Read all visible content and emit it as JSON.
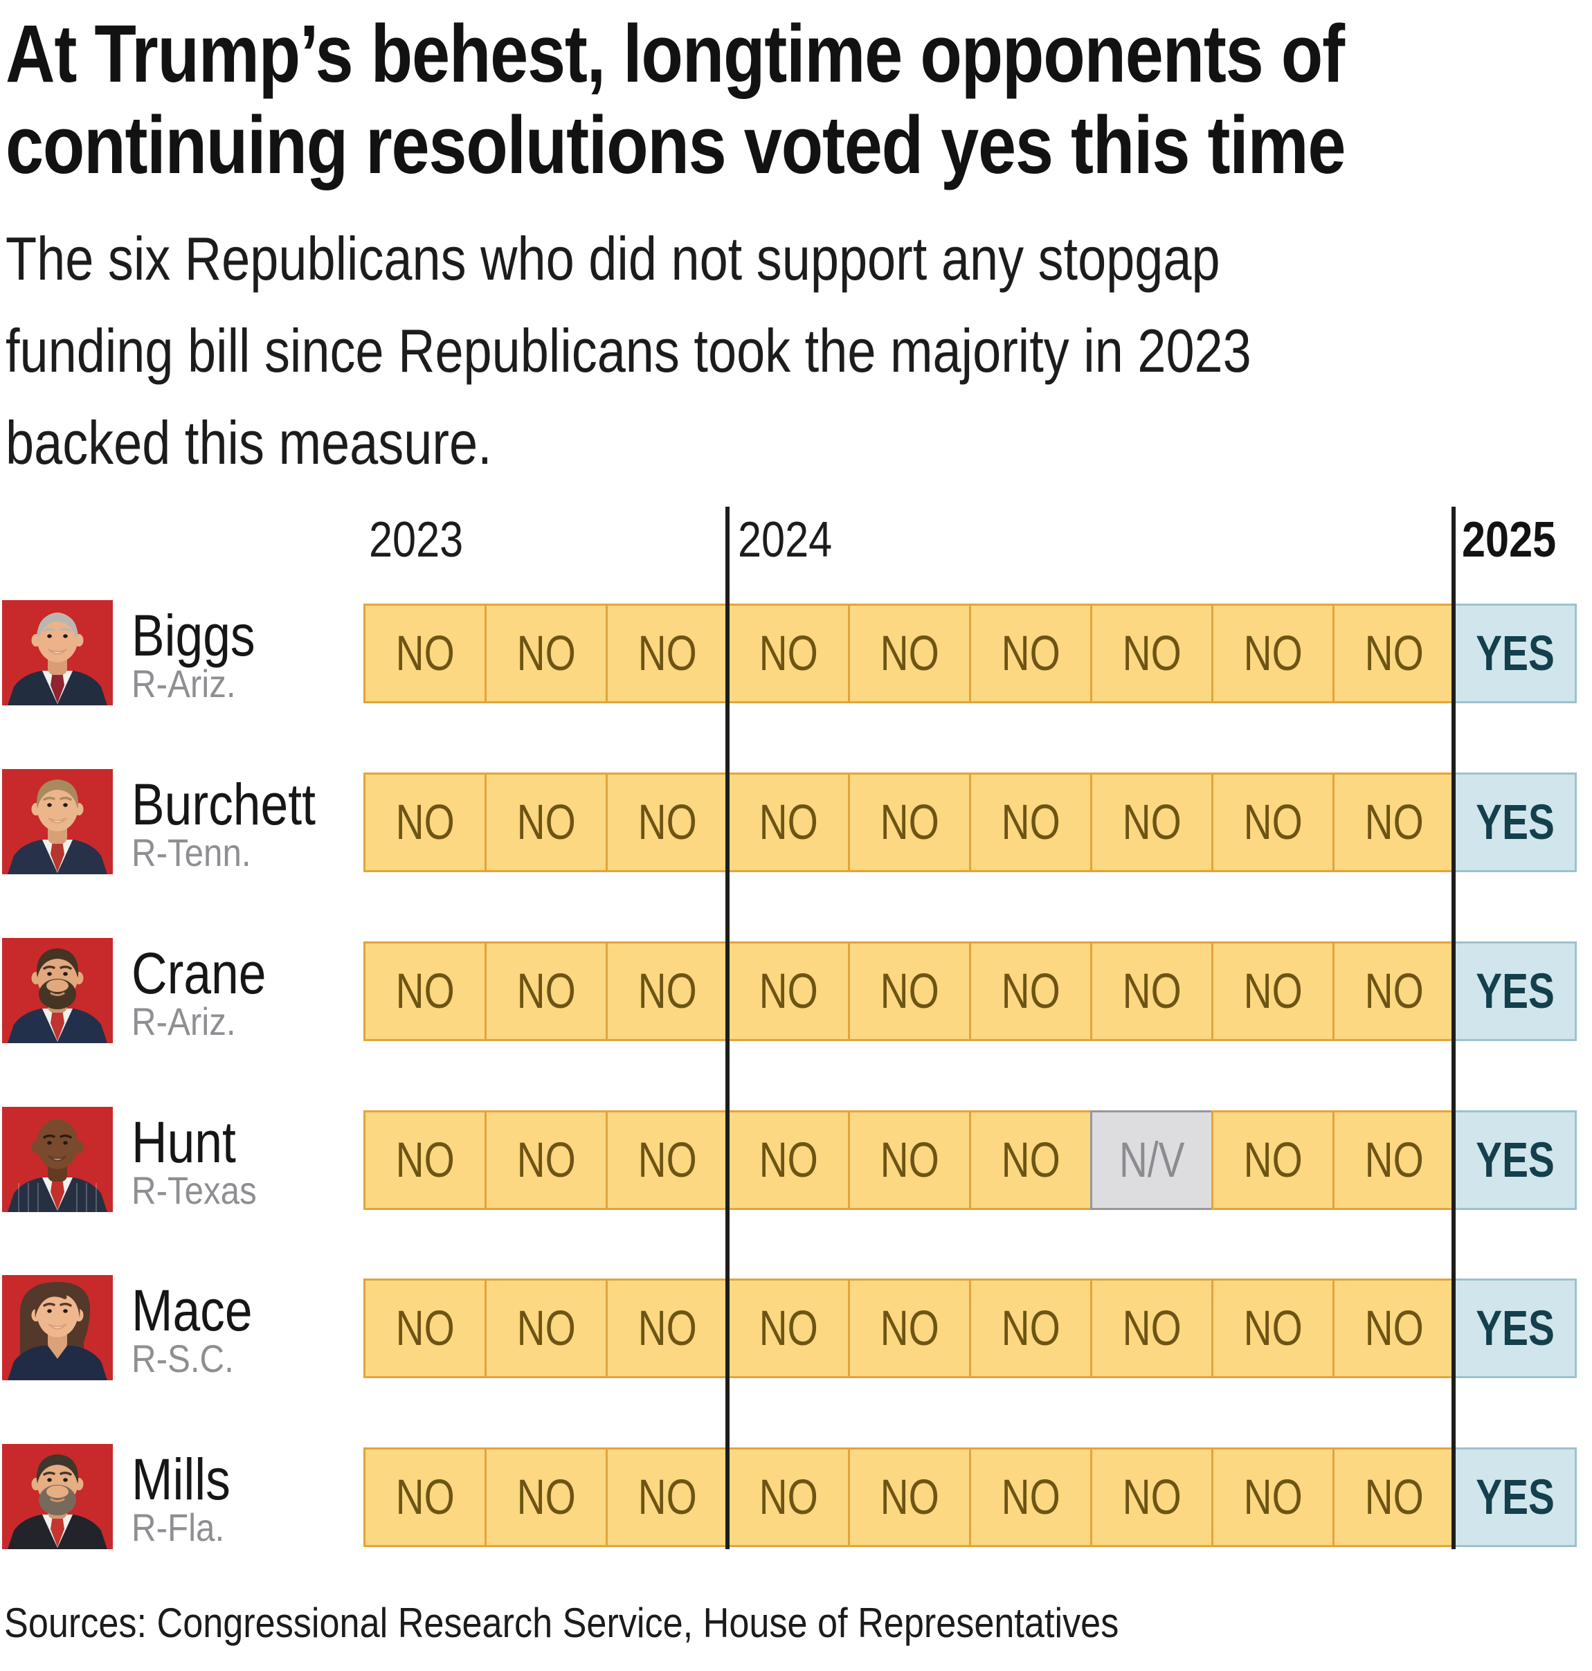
{
  "title_lines": [
    "At Trump’s behest, longtime opponents of",
    "continuing resolutions voted yes this time"
  ],
  "subtitle_lines": [
    "The six Republicans who did not support any stopgap",
    "funding bill since Republicans took the majority in 2023",
    "backed this measure."
  ],
  "years": [
    {
      "label": "2023",
      "bold": false
    },
    {
      "label": "2024",
      "bold": false
    },
    {
      "label": "2025",
      "bold": true
    }
  ],
  "source": "Sources: Congressional Research Service, House of Representatives",
  "colors": {
    "no_fill": "#fbd881",
    "no_border": "#e3a43a",
    "no_text": "#6e5414",
    "yes_fill": "#d0e6ec",
    "yes_border": "#9dc2cc",
    "yes_text": "#143f4c",
    "nv_fill": "#dddde0",
    "nv_border": "#96969c",
    "nv_text": "#8b8b91",
    "year_divider": "#1d1d1b",
    "photo_background": "#c8292a",
    "name_text": "#161616",
    "state_text": "#8e8e93"
  },
  "members": [
    {
      "name": "Biggs",
      "party_state": "R-Ariz.",
      "votes": [
        "NO",
        "NO",
        "NO",
        "NO",
        "NO",
        "NO",
        "NO",
        "NO",
        "NO",
        "YES"
      ],
      "avatar": {
        "bg": "#c8292a",
        "skin": "#ecb38a",
        "skin2": "#d99d74",
        "hair": "#b9b6b1",
        "hair_style": "combover",
        "beard": null,
        "suit": "#222d40",
        "shirt": true,
        "tie": "#8f2330",
        "pinstripe": false,
        "smile": true
      }
    },
    {
      "name": "Burchett",
      "party_state": "R-Tenn.",
      "votes": [
        "NO",
        "NO",
        "NO",
        "NO",
        "NO",
        "NO",
        "NO",
        "NO",
        "NO",
        "YES"
      ],
      "avatar": {
        "bg": "#c8292a",
        "skin": "#ecb68c",
        "skin2": "#d9a077",
        "hair": "#a88a5e",
        "hair_style": "side",
        "beard": null,
        "suit": "#27314a",
        "shirt": true,
        "tie": "#b5352f",
        "pinstripe": false,
        "smile": true
      }
    },
    {
      "name": "Crane",
      "party_state": "R-Ariz.",
      "votes": [
        "NO",
        "NO",
        "NO",
        "NO",
        "NO",
        "NO",
        "NO",
        "NO",
        "NO",
        "YES"
      ],
      "avatar": {
        "bg": "#c8292a",
        "skin": "#e2a87e",
        "skin2": "#cf9268",
        "hair": "#453323",
        "beard": "#463525",
        "hair_style": "side",
        "suit": "#22304c",
        "shirt": true,
        "tie": "#bd3430",
        "pinstripe": false,
        "smile": false
      }
    },
    {
      "name": "Hunt",
      "party_state": "R-Texas",
      "votes": [
        "NO",
        "NO",
        "NO",
        "NO",
        "NO",
        "NO",
        "N/V",
        "NO",
        "NO",
        "YES"
      ],
      "avatar": {
        "bg": "#c8292a",
        "skin": "#7a4a2e",
        "skin2": "#643a22",
        "hair": "#3a261a",
        "hair_style": "bald",
        "beard": null,
        "suit": "#273043",
        "shirt": true,
        "tie": "#c3302c",
        "pinstripe": true,
        "smile": true
      }
    },
    {
      "name": "Mace",
      "party_state": "R-S.C.",
      "votes": [
        "NO",
        "NO",
        "NO",
        "NO",
        "NO",
        "NO",
        "NO",
        "NO",
        "NO",
        "YES"
      ],
      "avatar": {
        "bg": "#c8292a",
        "skin": "#eeb78e",
        "skin2": "#dba178",
        "hair": "#54382a",
        "hair_style": "long",
        "beard": null,
        "suit": "#202b46",
        "shirt": false,
        "tie": null,
        "pinstripe": false,
        "smile": true
      }
    },
    {
      "name": "Mills",
      "party_state": "R-Fla.",
      "votes": [
        "NO",
        "NO",
        "NO",
        "NO",
        "NO",
        "NO",
        "NO",
        "NO",
        "NO",
        "YES"
      ],
      "avatar": {
        "bg": "#c8292a",
        "skin": "#e6ae82",
        "skin2": "#d3976c",
        "hair": "#3f362c",
        "beard": "#77695c",
        "hair_style": "side",
        "suit": "#23232c",
        "shirt": true,
        "tie": "#c43530",
        "pinstripe": false,
        "smile": false
      }
    }
  ],
  "chart_data": {
    "type": "table",
    "title": "At Trump’s behest, longtime opponents of continuing resolutions voted yes this time",
    "subtitle": "The six Republicans who did not support any stopgap funding bill since Republicans took the majority in 2023 backed this measure.",
    "column_year_groups": [
      {
        "year": "2023",
        "vote_columns": 3
      },
      {
        "year": "2024",
        "vote_columns": 6
      },
      {
        "year": "2025",
        "vote_columns": 1
      }
    ],
    "column_years": [
      "2023",
      "2023",
      "2023",
      "2024",
      "2024",
      "2024",
      "2024",
      "2024",
      "2024",
      "2025"
    ],
    "rows": [
      {
        "member": "Biggs",
        "party_state": "R-Ariz.",
        "votes": [
          "NO",
          "NO",
          "NO",
          "NO",
          "NO",
          "NO",
          "NO",
          "NO",
          "NO",
          "YES"
        ]
      },
      {
        "member": "Burchett",
        "party_state": "R-Tenn.",
        "votes": [
          "NO",
          "NO",
          "NO",
          "NO",
          "NO",
          "NO",
          "NO",
          "NO",
          "NO",
          "YES"
        ]
      },
      {
        "member": "Crane",
        "party_state": "R-Ariz.",
        "votes": [
          "NO",
          "NO",
          "NO",
          "NO",
          "NO",
          "NO",
          "NO",
          "NO",
          "NO",
          "YES"
        ]
      },
      {
        "member": "Hunt",
        "party_state": "R-Texas",
        "votes": [
          "NO",
          "NO",
          "NO",
          "NO",
          "NO",
          "NO",
          "N/V",
          "NO",
          "NO",
          "YES"
        ]
      },
      {
        "member": "Mace",
        "party_state": "R-S.C.",
        "votes": [
          "NO",
          "NO",
          "NO",
          "NO",
          "NO",
          "NO",
          "NO",
          "NO",
          "NO",
          "YES"
        ]
      },
      {
        "member": "Mills",
        "party_state": "R-Fla.",
        "votes": [
          "NO",
          "NO",
          "NO",
          "NO",
          "NO",
          "NO",
          "NO",
          "NO",
          "NO",
          "YES"
        ]
      }
    ],
    "cell_value_colors": {
      "NO": "#fbd881",
      "YES": "#d0e6ec",
      "N/V": "#dddde0"
    },
    "legend": null,
    "grid": false,
    "source": "Sources: Congressional Research Service, House of Representatives"
  }
}
